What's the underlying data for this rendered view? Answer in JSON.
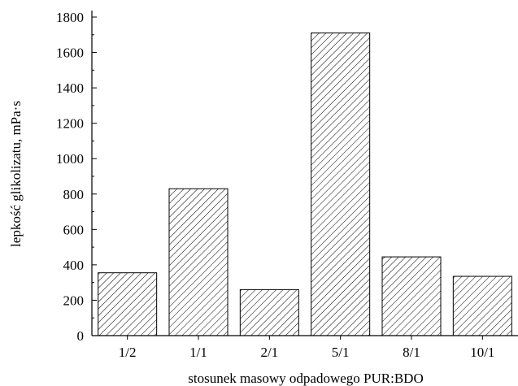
{
  "chart_data": {
    "type": "bar",
    "categories": [
      "1/2",
      "1/1",
      "2/1",
      "5/1",
      "8/1",
      "10/1"
    ],
    "values": [
      355,
      830,
      260,
      1710,
      445,
      335
    ],
    "xlabel": "stosunek masowy odpadowego PUR:BDO",
    "ylabel": "lepkość glikolizatu, mPa·s",
    "ylim": [
      0,
      1800
    ],
    "yticks": [
      0,
      200,
      400,
      600,
      800,
      1000,
      1200,
      1400,
      1600,
      1800
    ],
    "ytick_labels": [
      "0",
      "200",
      "400",
      "600",
      "800",
      "1000",
      "1200",
      "1400",
      "1600",
      "1800"
    ],
    "grid": false,
    "bar_fill": "diagonal-hatch",
    "colors": {
      "bar_stroke": "#000000",
      "background": "#ffffff"
    }
  }
}
